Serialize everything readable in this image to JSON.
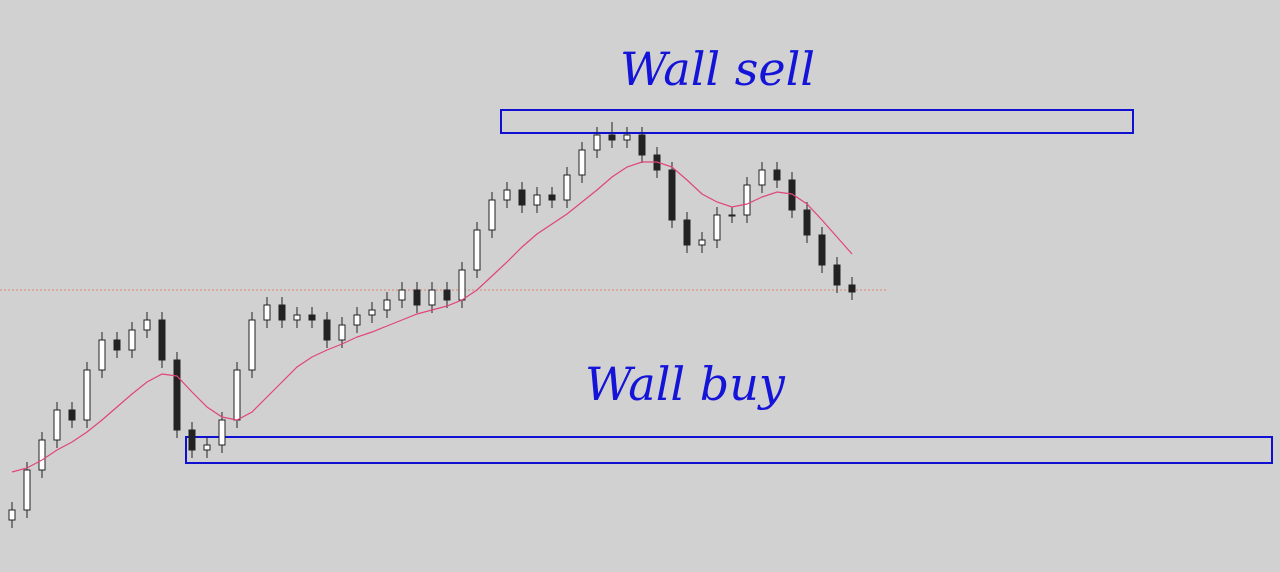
{
  "chart_data": {
    "type": "candlestick",
    "ylim": [
      0,
      572
    ],
    "open": [
      52,
      62,
      102,
      132,
      162,
      152,
      202,
      232,
      222,
      242,
      252,
      212,
      142,
      122,
      127,
      152,
      202,
      252,
      267,
      252,
      257,
      252,
      232,
      247,
      257,
      262,
      272,
      282,
      267,
      282,
      272,
      302,
      342,
      372,
      382,
      367,
      377,
      372,
      397,
      422,
      437,
      432,
      437,
      417,
      402,
      352,
      327,
      332,
      357,
      357,
      387,
      402,
      392,
      362,
      337,
      307,
      287
    ],
    "high": [
      70,
      110,
      140,
      170,
      170,
      210,
      240,
      240,
      250,
      260,
      260,
      220,
      150,
      135,
      160,
      210,
      260,
      275,
      275,
      265,
      265,
      260,
      255,
      265,
      270,
      280,
      290,
      290,
      290,
      290,
      310,
      350,
      380,
      390,
      390,
      385,
      385,
      405,
      430,
      445,
      450,
      445,
      445,
      425,
      410,
      360,
      340,
      365,
      365,
      395,
      410,
      410,
      400,
      370,
      345,
      315,
      295
    ],
    "low": [
      44,
      54,
      94,
      124,
      144,
      144,
      194,
      214,
      214,
      234,
      204,
      134,
      114,
      114,
      119,
      144,
      194,
      244,
      244,
      244,
      244,
      224,
      224,
      239,
      249,
      254,
      264,
      259,
      259,
      264,
      264,
      294,
      334,
      364,
      359,
      359,
      364,
      364,
      389,
      414,
      424,
      424,
      409,
      394,
      344,
      319,
      319,
      324,
      349,
      349,
      379,
      384,
      354,
      329,
      299,
      279,
      272
    ],
    "close": [
      62,
      102,
      132,
      162,
      152,
      202,
      232,
      222,
      242,
      252,
      212,
      142,
      122,
      127,
      152,
      202,
      252,
      267,
      252,
      257,
      252,
      232,
      247,
      257,
      262,
      272,
      282,
      267,
      282,
      272,
      302,
      342,
      372,
      382,
      367,
      377,
      372,
      397,
      422,
      437,
      432,
      437,
      417,
      402,
      352,
      327,
      332,
      357,
      357,
      387,
      402,
      392,
      362,
      337,
      307,
      287,
      280
    ],
    "up_color": "#ffffff",
    "down_color": "#222222",
    "moving_average": {
      "color": "#e0457b",
      "values": [
        100,
        104,
        112,
        122,
        130,
        140,
        152,
        165,
        178,
        190,
        198,
        196,
        180,
        165,
        155,
        152,
        160,
        175,
        190,
        205,
        215,
        222,
        228,
        235,
        240,
        246,
        252,
        258,
        262,
        266,
        272,
        282,
        296,
        310,
        325,
        338,
        348,
        358,
        370,
        382,
        395,
        405,
        410,
        410,
        405,
        392,
        378,
        370,
        365,
        368,
        375,
        380,
        378,
        368,
        352,
        335,
        318
      ]
    },
    "reference_line": {
      "value": 282,
      "color": "#e07050"
    },
    "zones": [
      {
        "label": "Wall sell",
        "top": 462,
        "bottom": 439,
        "start": 33,
        "color": "#1010d0"
      },
      {
        "label": "Wall buy",
        "top": 135,
        "bottom": 109,
        "start": 12,
        "color": "#1010d0"
      }
    ]
  }
}
